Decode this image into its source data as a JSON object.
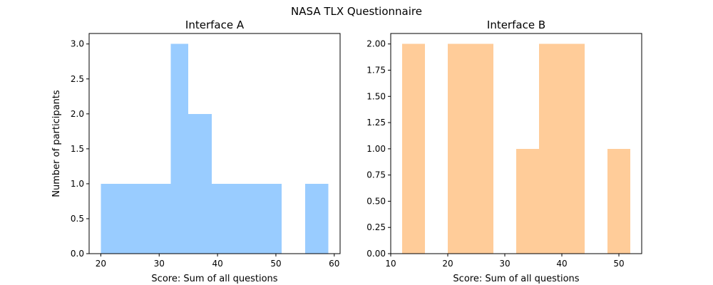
{
  "figure": {
    "title": "NASA TLX Questionnaire"
  },
  "chart_data": [
    {
      "type": "bar",
      "subtype": "histogram",
      "title": "Interface A",
      "xlabel": "Score: Sum of all questions",
      "ylabel": "Number of participants",
      "color": "#99ccff",
      "xlim": [
        18,
        61
      ],
      "ylim": [
        0,
        3.15
      ],
      "xticks": [
        20,
        30,
        40,
        50,
        60
      ],
      "yticks": [
        0.0,
        0.5,
        1.0,
        1.5,
        2.0,
        2.5,
        3.0
      ],
      "xtick_labels": [
        "20",
        "30",
        "40",
        "50",
        "60"
      ],
      "ytick_labels": [
        "0.0",
        "0.5",
        "1.0",
        "1.5",
        "2.0",
        "2.5",
        "3.0"
      ],
      "bins": [
        {
          "x0": 20,
          "x1": 24,
          "count": 1
        },
        {
          "x0": 24,
          "x1": 28,
          "count": 1
        },
        {
          "x0": 28,
          "x1": 32,
          "count": 1
        },
        {
          "x0": 32,
          "x1": 35,
          "count": 3
        },
        {
          "x0": 35,
          "x1": 39,
          "count": 2
        },
        {
          "x0": 39,
          "x1": 43,
          "count": 1
        },
        {
          "x0": 43,
          "x1": 47,
          "count": 1
        },
        {
          "x0": 47,
          "x1": 51,
          "count": 1
        },
        {
          "x0": 51,
          "x1": 55,
          "count": 0
        },
        {
          "x0": 55,
          "x1": 59,
          "count": 1
        }
      ]
    },
    {
      "type": "bar",
      "subtype": "histogram",
      "title": "Interface B",
      "xlabel": "Score: Sum of all questions",
      "ylabel": "",
      "color": "#ffcc99",
      "xlim": [
        10,
        54
      ],
      "ylim": [
        0,
        2.1
      ],
      "xticks": [
        10,
        20,
        30,
        40,
        50
      ],
      "yticks": [
        0.0,
        0.25,
        0.5,
        0.75,
        1.0,
        1.25,
        1.5,
        1.75,
        2.0
      ],
      "xtick_labels": [
        "10",
        "20",
        "30",
        "40",
        "50"
      ],
      "ytick_labels": [
        "0.00",
        "0.25",
        "0.50",
        "0.75",
        "1.00",
        "1.25",
        "1.50",
        "1.75",
        "2.00"
      ],
      "bins": [
        {
          "x0": 12,
          "x1": 16,
          "count": 2
        },
        {
          "x0": 16,
          "x1": 20,
          "count": 0
        },
        {
          "x0": 20,
          "x1": 24,
          "count": 2
        },
        {
          "x0": 24,
          "x1": 28,
          "count": 2
        },
        {
          "x0": 28,
          "x1": 32,
          "count": 0
        },
        {
          "x0": 32,
          "x1": 36,
          "count": 1
        },
        {
          "x0": 36,
          "x1": 40,
          "count": 2
        },
        {
          "x0": 40,
          "x1": 44,
          "count": 2
        },
        {
          "x0": 44,
          "x1": 48,
          "count": 0
        },
        {
          "x0": 48,
          "x1": 52,
          "count": 1
        }
      ]
    }
  ]
}
